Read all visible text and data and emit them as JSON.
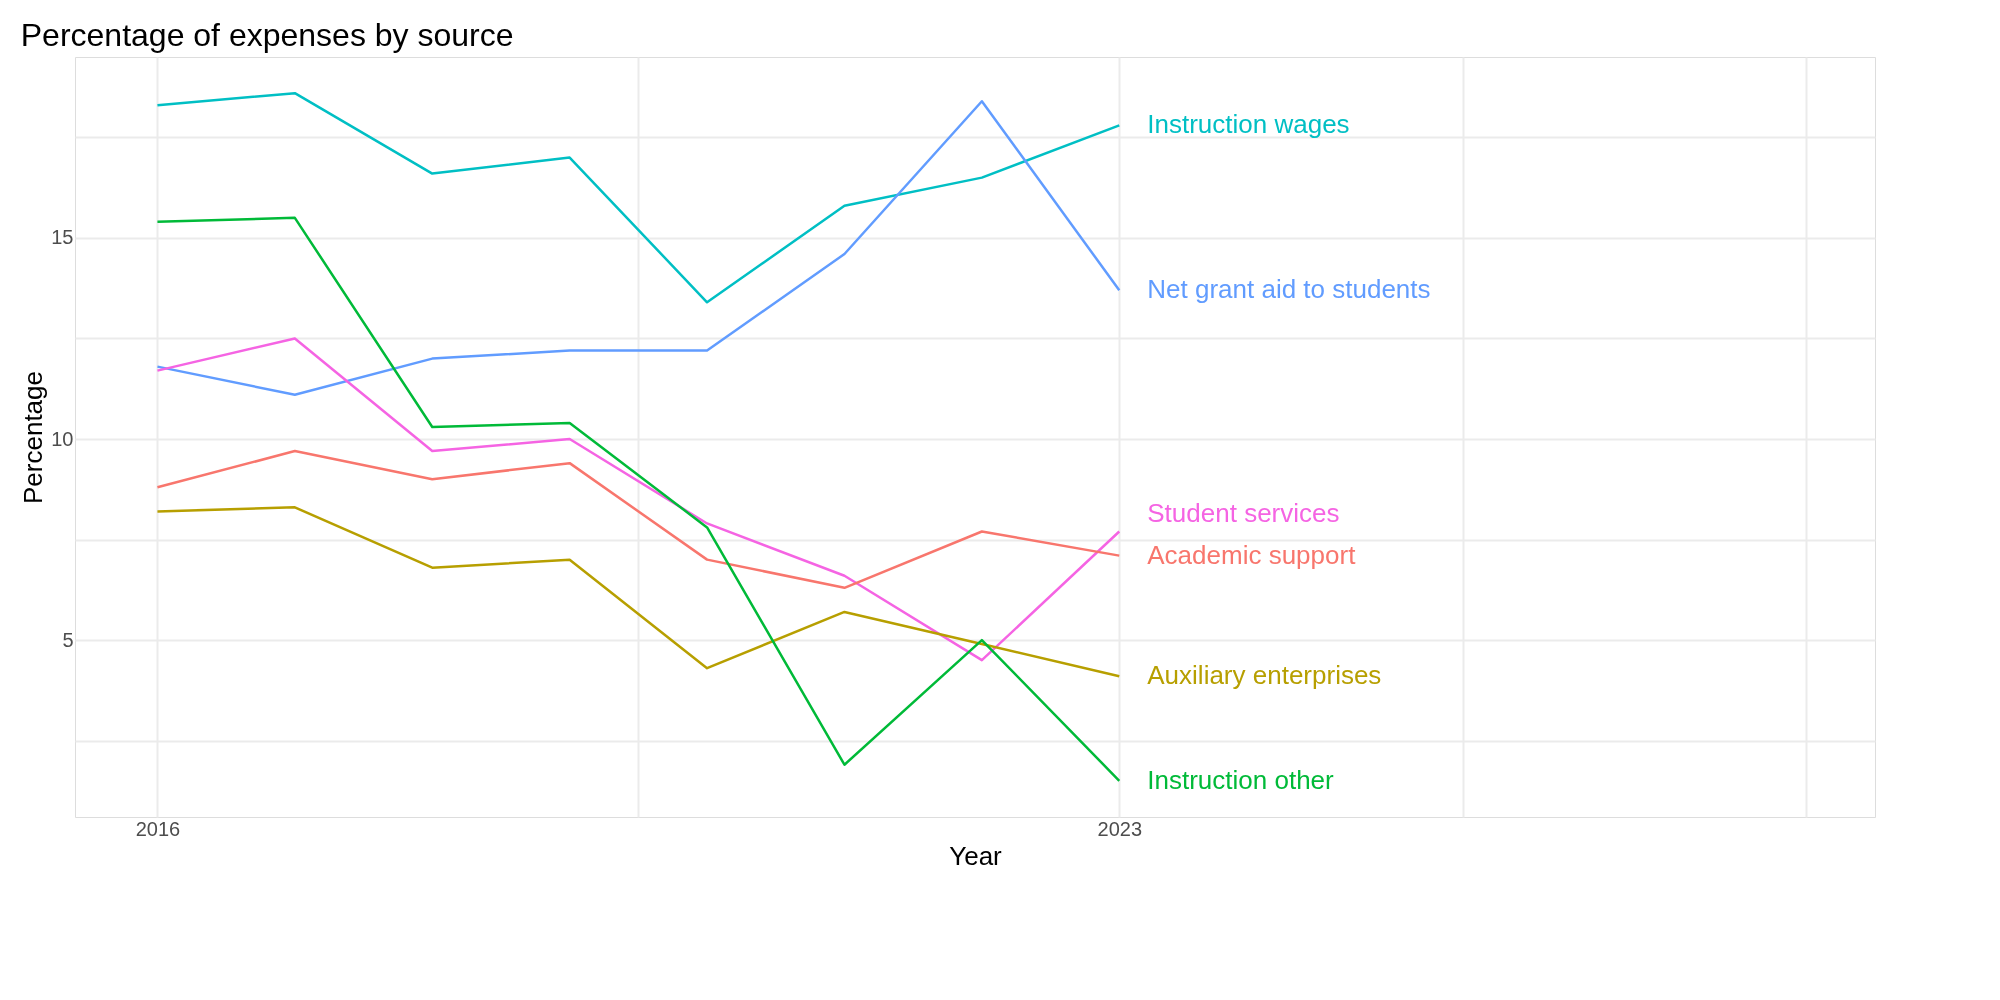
{
  "chart_data": {
    "type": "line",
    "title": "Percentage of expenses by source",
    "xlabel": "Year",
    "ylabel": "Percentage",
    "x": [
      2016,
      2017,
      2018,
      2019,
      2020,
      2021,
      2022,
      2023
    ],
    "xlim": [
      2015.4,
      2028.5
    ],
    "xticks": [
      2016,
      {
        "value": 2019.5,
        "label": null
      },
      2023,
      {
        "value": 2025.5,
        "label": null
      },
      {
        "value": 2028,
        "label": null
      }
    ],
    "ylim": [
      0.6,
      19.5
    ],
    "yticks": [
      {
        "value": 2.5,
        "label": null
      },
      5,
      {
        "value": 7.5,
        "label": null
      },
      10,
      {
        "value": 12.5,
        "label": null
      },
      15,
      {
        "value": 17.5,
        "label": null
      }
    ],
    "grid": true,
    "legend": false,
    "line_style": "solid",
    "marker": "none",
    "series": [
      {
        "name": "Instruction wages",
        "color": "#00bfc4",
        "values": [
          18.3,
          18.6,
          16.6,
          17.0,
          13.4,
          15.8,
          16.5,
          17.8
        ]
      },
      {
        "name": "Net grant aid to students",
        "color": "#619cff",
        "values": [
          11.8,
          11.1,
          12.0,
          12.2,
          12.2,
          14.6,
          18.4,
          13.7
        ]
      },
      {
        "name": "Student services",
        "color": "#f564e3",
        "values": [
          11.7,
          12.5,
          9.7,
          10.0,
          7.9,
          6.6,
          4.5,
          7.7
        ]
      },
      {
        "name": "Academic support",
        "color": "#f8766d",
        "values": [
          8.8,
          9.7,
          9.0,
          9.4,
          7.0,
          6.3,
          7.7,
          7.1
        ]
      },
      {
        "name": "Auxiliary enterprises",
        "color": "#b79f00",
        "values": [
          8.2,
          8.3,
          6.8,
          7.0,
          4.3,
          5.7,
          4.9,
          4.1
        ]
      },
      {
        "name": "Instruction other",
        "color": "#00ba38",
        "values": [
          15.4,
          15.5,
          10.3,
          10.4,
          7.8,
          1.9,
          5.0,
          1.5
        ]
      }
    ]
  }
}
